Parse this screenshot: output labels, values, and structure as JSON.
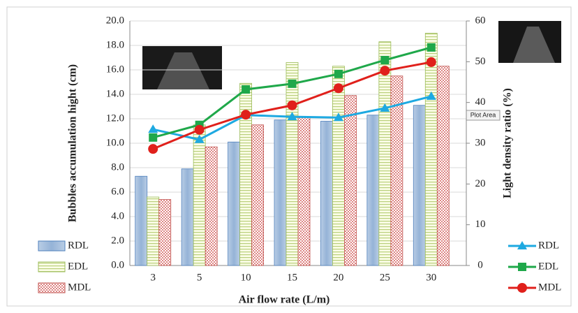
{
  "chart_data": {
    "type": "bar_line",
    "x_label": "Air flow rate (L/m)",
    "y_label": "Bubbles accumulation hight (cm)",
    "y2_label": "Light density ratio (%)",
    "tooltip": "Plot Area",
    "categories": [
      "3",
      "5",
      "10",
      "15",
      "20",
      "25",
      "30"
    ],
    "series": [
      {
        "name": "RDL",
        "type": "bar",
        "color": "#95b3d7",
        "values": [
          7.3,
          7.9,
          10.1,
          11.9,
          11.8,
          12.3,
          13.1
        ]
      },
      {
        "name": "EDL",
        "type": "bar",
        "color": "#d7e4bd",
        "values": [
          5.6,
          11.5,
          14.9,
          16.6,
          16.3,
          18.3,
          19.0
        ]
      },
      {
        "name": "MDL",
        "type": "bar",
        "color": "#e6b9b8",
        "values": [
          5.4,
          9.7,
          11.5,
          12.1,
          13.9,
          15.5,
          16.3
        ]
      },
      {
        "name": "RDL",
        "type": "line",
        "axis": "y2",
        "color": "#1ea9e1",
        "marker": "triangle",
        "values": [
          33.4,
          30.9,
          36.9,
          36.5,
          36.3,
          38.6,
          41.5
        ]
      },
      {
        "name": "EDL",
        "type": "line",
        "axis": "y2",
        "color": "#1fa84a",
        "marker": "square",
        "values": [
          31.4,
          34.5,
          43.2,
          44.6,
          47.0,
          50.4,
          53.5
        ]
      },
      {
        "name": "MDL",
        "type": "line",
        "axis": "y2",
        "color": "#e0201b",
        "marker": "circle",
        "values": [
          28.6,
          33.3,
          37.0,
          39.3,
          43.5,
          47.8,
          49.9
        ]
      }
    ],
    "ylim": [
      0,
      20
    ],
    "yticks": [
      {
        "value": 0,
        "label": "0.0"
      },
      {
        "value": 2,
        "label": "2.0"
      },
      {
        "value": 4,
        "label": "4.0"
      },
      {
        "value": 6,
        "label": "6.0"
      },
      {
        "value": 8,
        "label": "8.0"
      },
      {
        "value": 10,
        "label": "10.0"
      },
      {
        "value": 12,
        "label": "12.0"
      },
      {
        "value": 14,
        "label": "14.0"
      },
      {
        "value": 16,
        "label": "16.0"
      },
      {
        "value": 18,
        "label": "18.0"
      },
      {
        "value": 20,
        "label": "20.0"
      }
    ],
    "y2lim": [
      0,
      60
    ],
    "y2ticks": [
      0,
      10,
      20,
      30,
      40,
      50,
      60
    ],
    "grid": true
  }
}
